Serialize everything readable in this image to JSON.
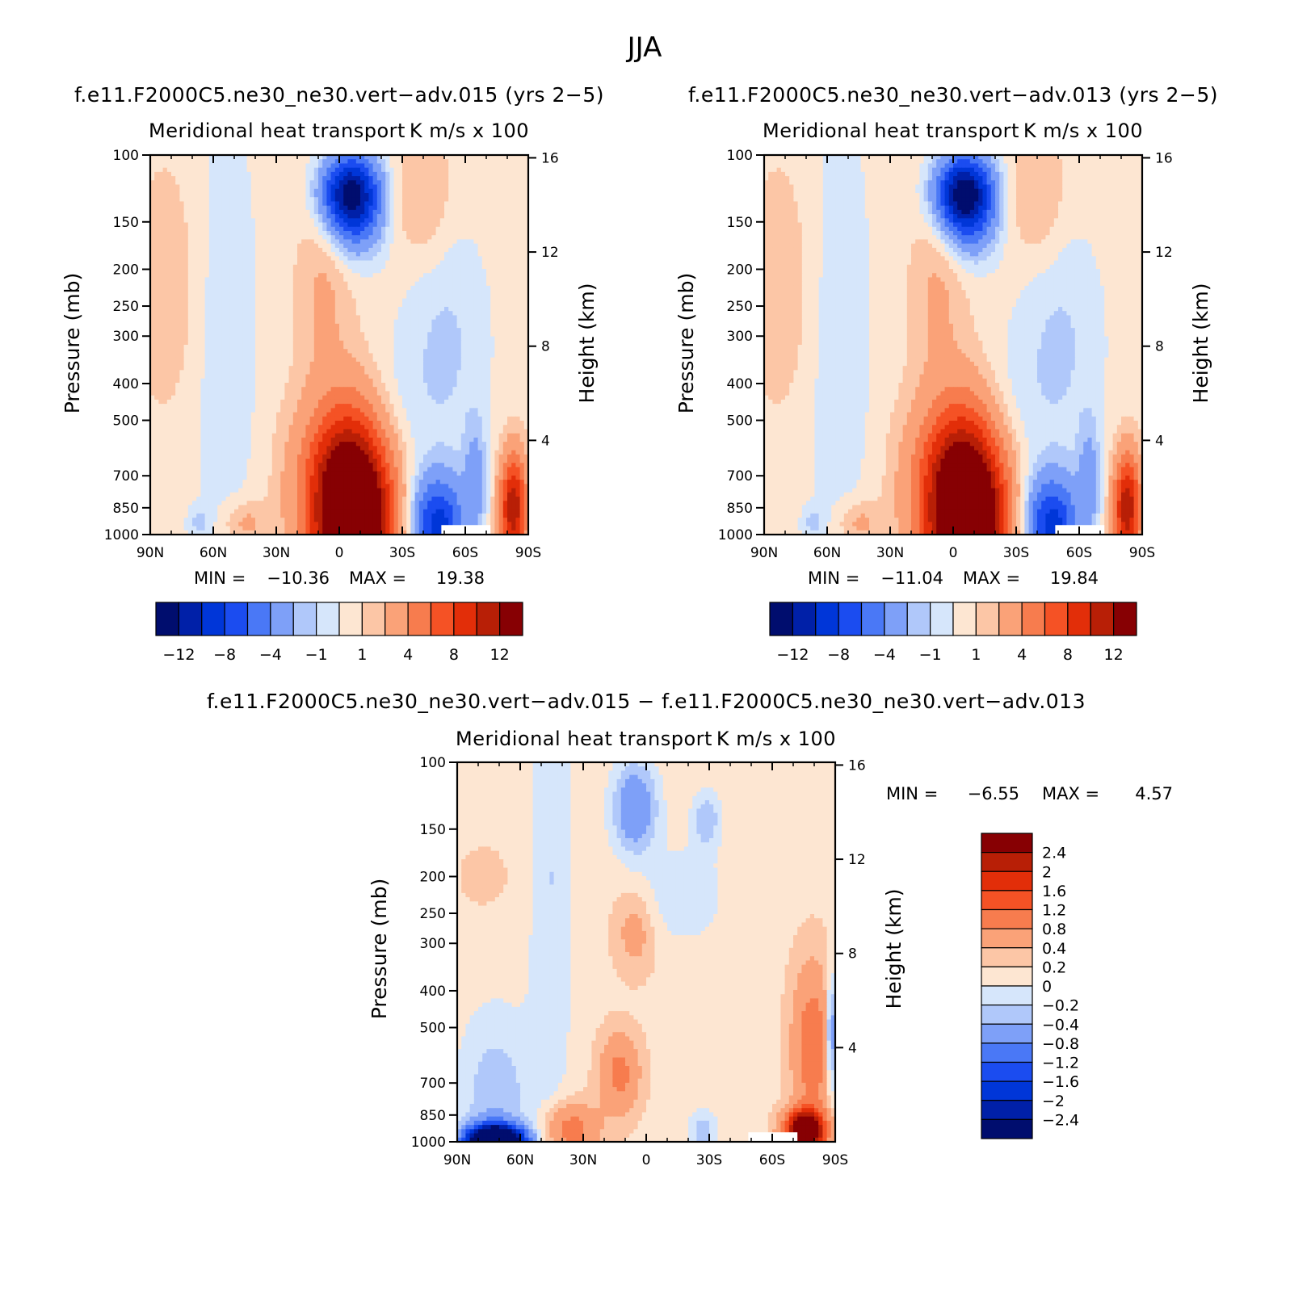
{
  "title": "JJA",
  "palette": {
    "blue": [
      "#000d6e",
      "#0020a8",
      "#0036d8",
      "#1b4cf0",
      "#4a78f6",
      "#7ea0f8",
      "#b0c8fa",
      "#d6e6fb"
    ],
    "red": [
      "#fde6d2",
      "#fcc6a6",
      "#faa278",
      "#f77c4e",
      "#f55225",
      "#e22e09",
      "#b81f06",
      "#870003"
    ]
  },
  "panels": [
    {
      "header": "f.e11.F2000C5.ne30_ne30.vert−adv.015 (yrs 2−5)",
      "title_left": "Meridional heat transport",
      "title_right": "K m/s x 100",
      "ylabel_left": "Pressure (mb)",
      "ylabel_right": "Height (km)",
      "min_label": "MIN =",
      "min_value": "−10.36",
      "max_label": "MAX =",
      "max_value": "19.38"
    },
    {
      "header": "f.e11.F2000C5.ne30_ne30.vert−adv.013 (yrs 2−5)",
      "title_left": "Meridional heat transport",
      "title_right": "K m/s x 100",
      "ylabel_left": "Pressure (mb)",
      "ylabel_right": "Height (km)",
      "min_label": "MIN =",
      "min_value": "−11.04",
      "max_label": "MAX =",
      "max_value": "19.84"
    },
    {
      "header": "f.e11.F2000C5.ne30_ne30.vert−adv.015 − f.e11.F2000C5.ne30_ne30.vert−adv.013",
      "title_left": "Meridional heat transport",
      "title_right": "K m/s x 100",
      "ylabel_left": "Pressure (mb)",
      "ylabel_right": "Height (km)",
      "min_label": "MIN =",
      "min_value": "−6.55",
      "max_label": "MAX =",
      "max_value": "4.57"
    }
  ],
  "colorbars": {
    "abs_labels": [
      "−12",
      "−8",
      "−4",
      "−1",
      "1",
      "4",
      "8",
      "12"
    ],
    "diff_labels": [
      "2.4",
      "2",
      "1.6",
      "1.2",
      "0.8",
      "0.4",
      "0.2",
      "0",
      "−0.2",
      "−0.4",
      "−0.8",
      "−1.2",
      "−1.6",
      "−2",
      "−2.4"
    ]
  },
  "chart_data": [
    {
      "type": "heatmap",
      "title": "Meridional heat transport",
      "units": "K m/s x 100",
      "xlabel": "",
      "ylabel": "Pressure (mb)",
      "ylabel_right": "Height (km)",
      "x_ticks": [
        "90N",
        "60N",
        "30N",
        "0",
        "30S",
        "60S",
        "90S"
      ],
      "y_ticks": [
        100,
        150,
        200,
        250,
        300,
        400,
        500,
        700,
        850,
        1000
      ],
      "y_right_ticks": [
        16,
        12,
        8,
        4
      ],
      "min": -10.36,
      "max": 19.38,
      "levels": [
        -12,
        -10,
        -8,
        -6,
        -4,
        -2,
        -1,
        0,
        1,
        2,
        4,
        6,
        8,
        10,
        12
      ],
      "grid": false
    },
    {
      "type": "heatmap",
      "title": "Meridional heat transport",
      "units": "K m/s x 100",
      "xlabel": "",
      "ylabel": "Pressure (mb)",
      "ylabel_right": "Height (km)",
      "x_ticks": [
        "90N",
        "60N",
        "30N",
        "0",
        "30S",
        "60S",
        "90S"
      ],
      "y_ticks": [
        100,
        150,
        200,
        250,
        300,
        400,
        500,
        700,
        850,
        1000
      ],
      "y_right_ticks": [
        16,
        12,
        8,
        4
      ],
      "min": -11.04,
      "max": 19.84,
      "levels": [
        -12,
        -10,
        -8,
        -6,
        -4,
        -2,
        -1,
        0,
        1,
        2,
        4,
        6,
        8,
        10,
        12
      ],
      "grid": false
    },
    {
      "type": "heatmap",
      "title": "Meridional heat transport",
      "units": "K m/s x 100",
      "xlabel": "",
      "ylabel": "Pressure (mb)",
      "ylabel_right": "Height (km)",
      "x_ticks": [
        "90N",
        "60N",
        "30N",
        "0",
        "30S",
        "60S",
        "90S"
      ],
      "y_ticks": [
        100,
        150,
        200,
        250,
        300,
        400,
        500,
        700,
        850,
        1000
      ],
      "y_right_ticks": [
        16,
        12,
        8,
        4
      ],
      "min": -6.55,
      "max": 4.57,
      "levels": [
        -2.4,
        -2,
        -1.6,
        -1.2,
        -0.8,
        -0.4,
        -0.2,
        0,
        0.2,
        0.4,
        0.8,
        1.2,
        1.6,
        2,
        2.4
      ],
      "grid": false
    }
  ]
}
